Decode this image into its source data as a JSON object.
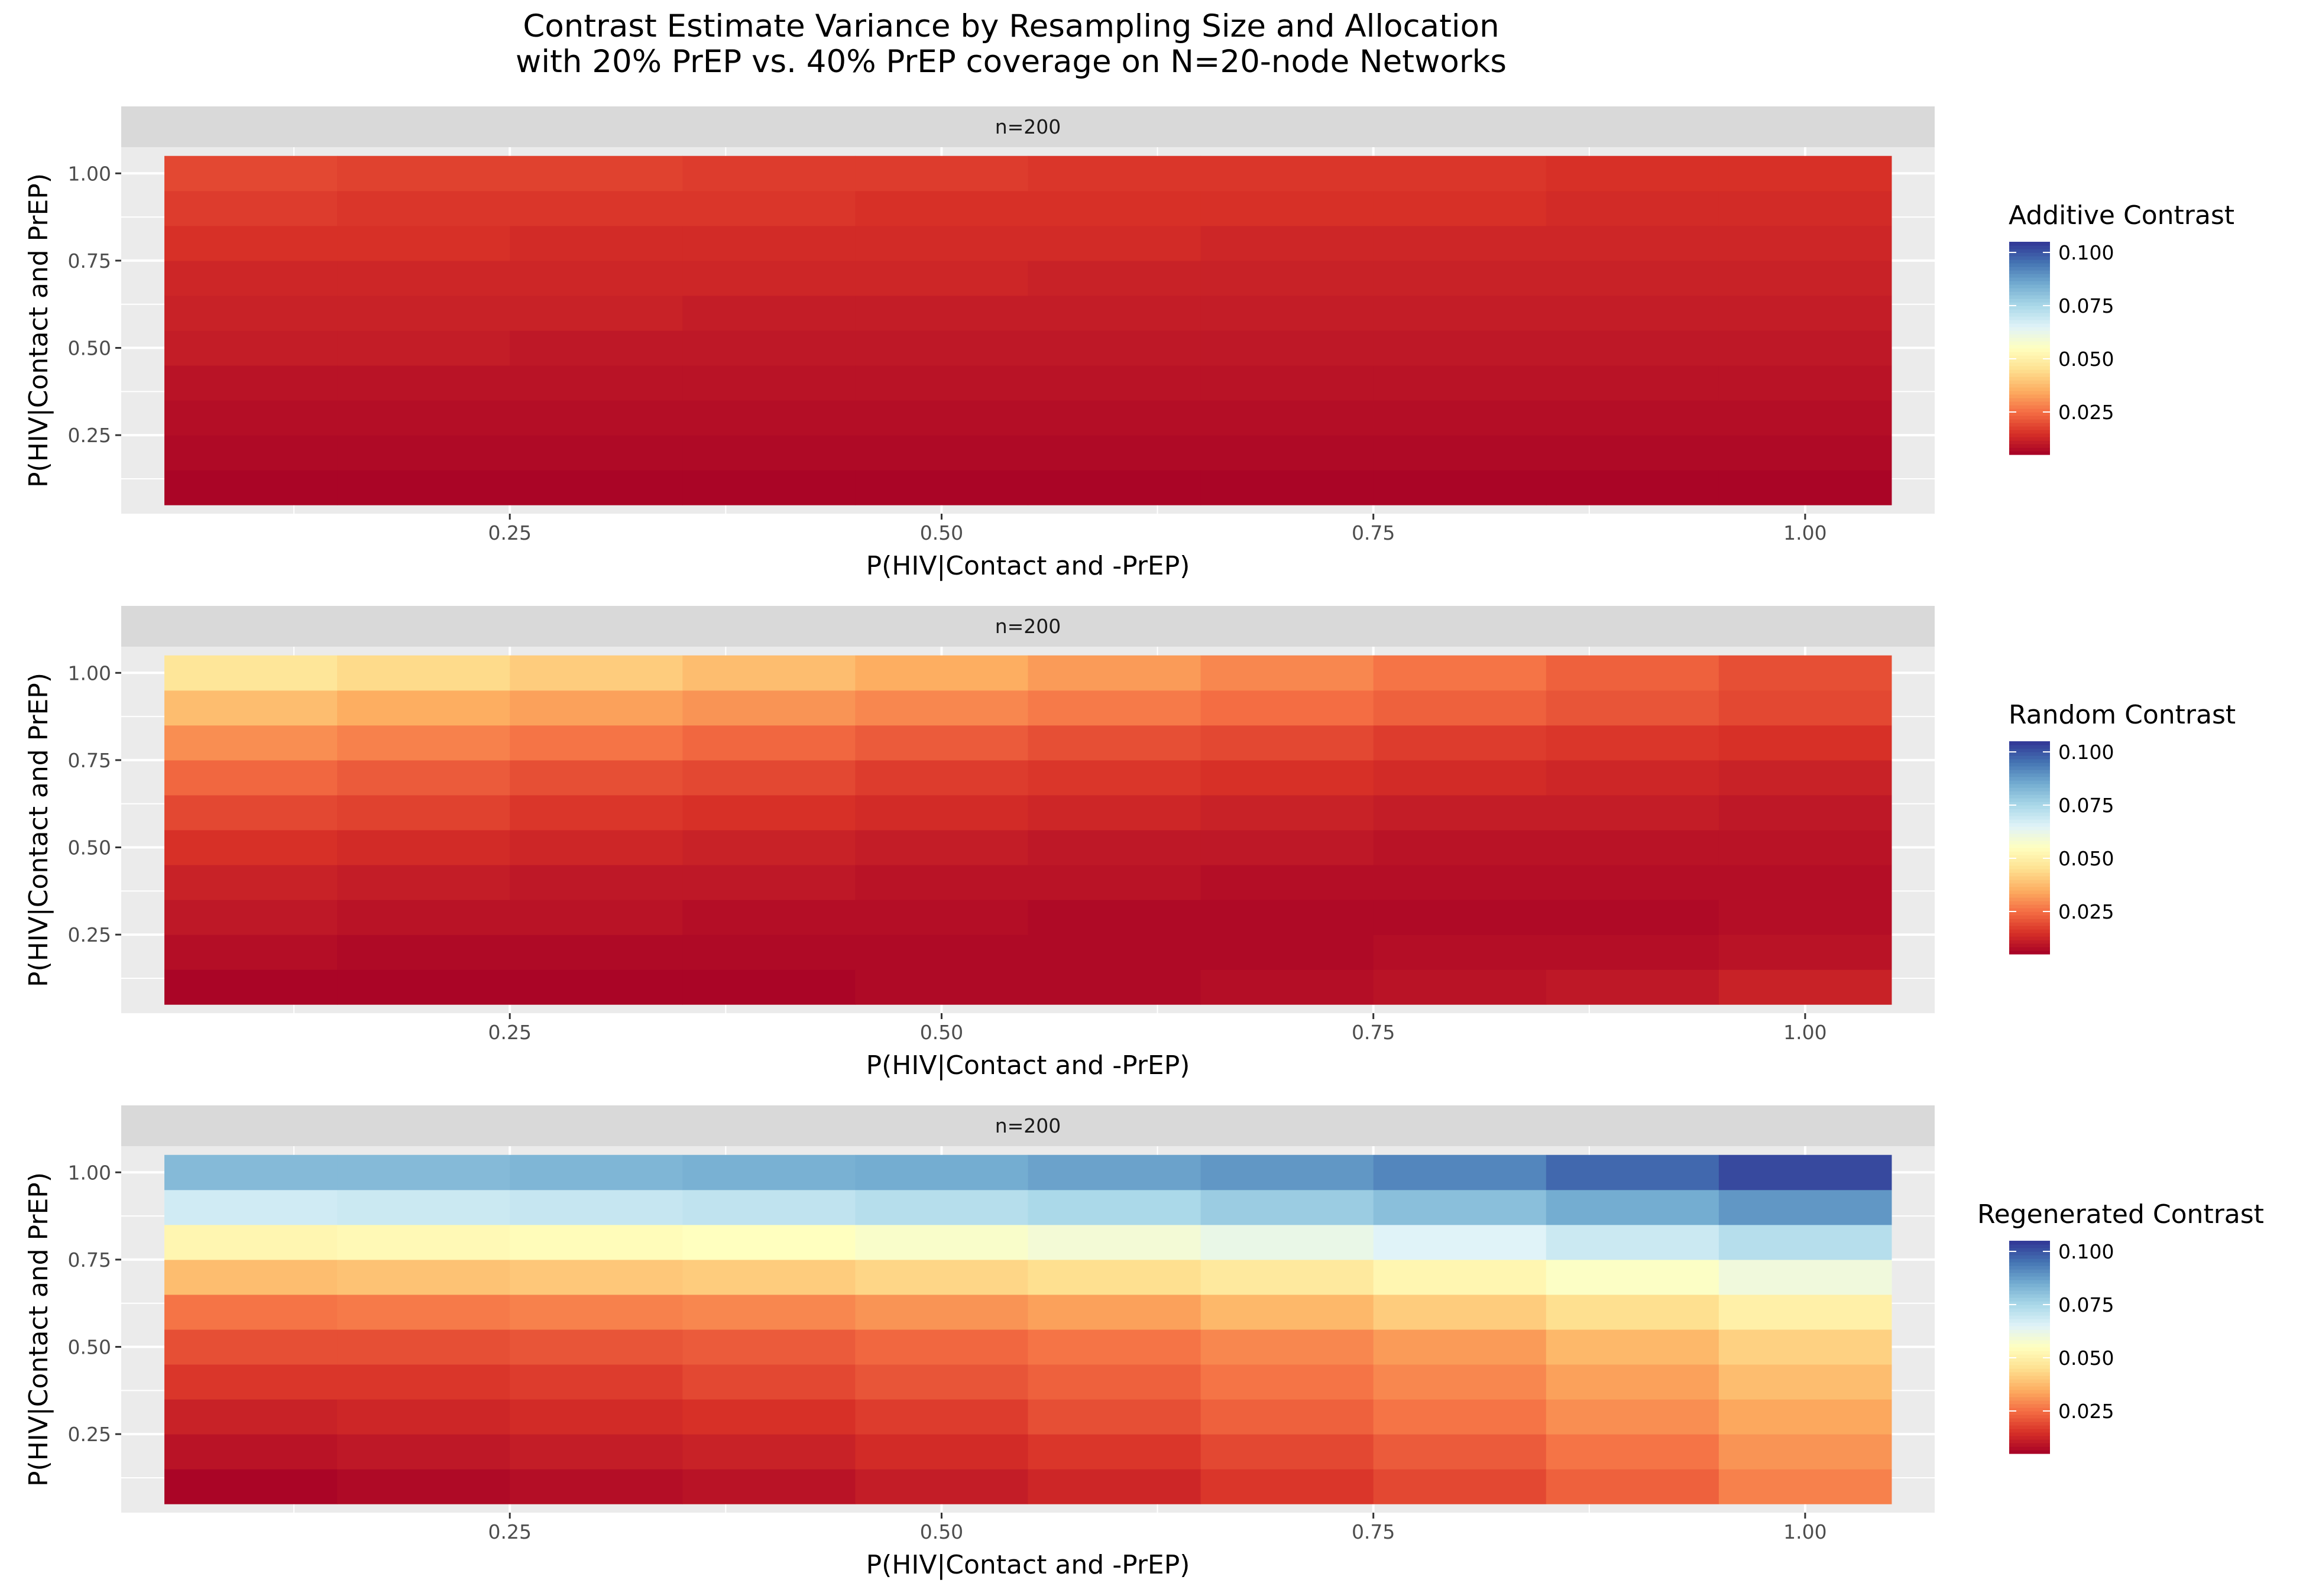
{
  "title": [
    "Contrast Estimate Variance by Resampling Size  and Allocation",
    "with 20% PrEP vs. 40% PrEP coverage on N=20-node Networks"
  ],
  "colors": {
    "panel_bg": "#ebebeb",
    "strip_bg": "#d9d9d9",
    "grid": "#ffffff",
    "scale": [
      "#a50026",
      "#d73027",
      "#f46d43",
      "#fdae61",
      "#fee090",
      "#ffffbf",
      "#e0f3f8",
      "#abd9e9",
      "#74add1",
      "#4575b4",
      "#313695"
    ]
  },
  "chart_data": [
    {
      "type": "heatmap",
      "facet_label": "n=200",
      "xlabel": "P(HIV|Contact and -PrEP)",
      "ylabel": "P(HIV|Contact and PrEP)",
      "x": [
        0.1,
        0.2,
        0.3,
        0.4,
        0.5,
        0.6,
        0.7,
        0.8,
        0.9,
        1.0
      ],
      "y": [
        0.1,
        0.2,
        0.3,
        0.4,
        0.5,
        0.6,
        0.7,
        0.8,
        0.9,
        1.0
      ],
      "xticks": [
        "0.25",
        "0.50",
        "0.75",
        "1.00"
      ],
      "yticks": [
        "0.25",
        "0.50",
        "0.75",
        "1.00"
      ],
      "legend_title": "Additive Contrast",
      "legend_ticks": [
        "0.025",
        "0.050",
        "0.075",
        "0.100"
      ],
      "limits": [
        0.005,
        0.105
      ],
      "values": [
        [
          0.006,
          0.006,
          0.006,
          0.006,
          0.006,
          0.006,
          0.006,
          0.006,
          0.006,
          0.006
        ],
        [
          0.007,
          0.007,
          0.007,
          0.007,
          0.007,
          0.007,
          0.007,
          0.007,
          0.007,
          0.007
        ],
        [
          0.008,
          0.008,
          0.008,
          0.008,
          0.008,
          0.008,
          0.008,
          0.008,
          0.008,
          0.008
        ],
        [
          0.009,
          0.009,
          0.009,
          0.009,
          0.009,
          0.009,
          0.009,
          0.009,
          0.009,
          0.009
        ],
        [
          0.011,
          0.011,
          0.01,
          0.01,
          0.01,
          0.01,
          0.01,
          0.01,
          0.01,
          0.01
        ],
        [
          0.012,
          0.012,
          0.012,
          0.011,
          0.011,
          0.011,
          0.011,
          0.011,
          0.011,
          0.011
        ],
        [
          0.013,
          0.013,
          0.013,
          0.013,
          0.013,
          0.012,
          0.012,
          0.012,
          0.012,
          0.012
        ],
        [
          0.015,
          0.015,
          0.014,
          0.014,
          0.014,
          0.014,
          0.013,
          0.013,
          0.013,
          0.013
        ],
        [
          0.017,
          0.016,
          0.016,
          0.016,
          0.015,
          0.015,
          0.015,
          0.015,
          0.014,
          0.014
        ],
        [
          0.019,
          0.018,
          0.018,
          0.017,
          0.017,
          0.016,
          0.016,
          0.016,
          0.015,
          0.015
        ]
      ]
    },
    {
      "type": "heatmap",
      "facet_label": "n=200",
      "xlabel": "P(HIV|Contact and -PrEP)",
      "ylabel": "P(HIV|Contact and PrEP)",
      "x": [
        0.1,
        0.2,
        0.3,
        0.4,
        0.5,
        0.6,
        0.7,
        0.8,
        0.9,
        1.0
      ],
      "y": [
        0.1,
        0.2,
        0.3,
        0.4,
        0.5,
        0.6,
        0.7,
        0.8,
        0.9,
        1.0
      ],
      "xticks": [
        "0.25",
        "0.50",
        "0.75",
        "1.00"
      ],
      "yticks": [
        "0.25",
        "0.50",
        "0.75",
        "1.00"
      ],
      "legend_title": "Random Contrast",
      "legend_ticks": [
        "0.025",
        "0.050",
        "0.075",
        "0.100"
      ],
      "limits": [
        0.005,
        0.105
      ],
      "values": [
        [
          0.006,
          0.006,
          0.006,
          0.006,
          0.007,
          0.007,
          0.008,
          0.009,
          0.01,
          0.012
        ],
        [
          0.008,
          0.007,
          0.007,
          0.007,
          0.007,
          0.007,
          0.007,
          0.008,
          0.008,
          0.009
        ],
        [
          0.01,
          0.009,
          0.009,
          0.008,
          0.008,
          0.007,
          0.007,
          0.007,
          0.007,
          0.008
        ],
        [
          0.012,
          0.011,
          0.01,
          0.01,
          0.009,
          0.009,
          0.008,
          0.008,
          0.008,
          0.008
        ],
        [
          0.015,
          0.014,
          0.013,
          0.012,
          0.011,
          0.01,
          0.01,
          0.009,
          0.009,
          0.009
        ],
        [
          0.019,
          0.018,
          0.016,
          0.015,
          0.014,
          0.013,
          0.012,
          0.011,
          0.011,
          0.01
        ],
        [
          0.024,
          0.022,
          0.02,
          0.019,
          0.017,
          0.016,
          0.015,
          0.014,
          0.013,
          0.012
        ],
        [
          0.03,
          0.028,
          0.026,
          0.024,
          0.022,
          0.02,
          0.019,
          0.017,
          0.016,
          0.015
        ],
        [
          0.038,
          0.035,
          0.033,
          0.031,
          0.029,
          0.027,
          0.025,
          0.023,
          0.021,
          0.019
        ],
        [
          0.047,
          0.044,
          0.041,
          0.038,
          0.035,
          0.032,
          0.029,
          0.026,
          0.023,
          0.02
        ]
      ]
    },
    {
      "type": "heatmap",
      "facet_label": "n=200",
      "xlabel": "P(HIV|Contact and -PrEP)",
      "ylabel": "P(HIV|Contact and PrEP)",
      "x": [
        0.1,
        0.2,
        0.3,
        0.4,
        0.5,
        0.6,
        0.7,
        0.8,
        0.9,
        1.0
      ],
      "y": [
        0.1,
        0.2,
        0.3,
        0.4,
        0.5,
        0.6,
        0.7,
        0.8,
        0.9,
        1.0
      ],
      "xticks": [
        "0.25",
        "0.50",
        "0.75",
        "1.00"
      ],
      "yticks": [
        "0.25",
        "0.50",
        "0.75",
        "1.00"
      ],
      "legend_title": "Regenerated Contrast",
      "legend_ticks": [
        "0.025",
        "0.050",
        "0.075",
        "0.100"
      ],
      "limits": [
        0.005,
        0.105
      ],
      "values": [
        [
          0.006,
          0.007,
          0.008,
          0.009,
          0.011,
          0.013,
          0.016,
          0.019,
          0.023,
          0.028
        ],
        [
          0.009,
          0.01,
          0.011,
          0.012,
          0.014,
          0.016,
          0.019,
          0.022,
          0.026,
          0.031
        ],
        [
          0.012,
          0.013,
          0.014,
          0.015,
          0.017,
          0.02,
          0.023,
          0.026,
          0.03,
          0.034
        ],
        [
          0.016,
          0.016,
          0.017,
          0.019,
          0.021,
          0.023,
          0.026,
          0.029,
          0.033,
          0.038
        ],
        [
          0.02,
          0.02,
          0.021,
          0.022,
          0.024,
          0.026,
          0.029,
          0.032,
          0.037,
          0.042
        ],
        [
          0.026,
          0.027,
          0.028,
          0.029,
          0.031,
          0.033,
          0.037,
          0.041,
          0.045,
          0.05
        ],
        [
          0.038,
          0.039,
          0.04,
          0.041,
          0.043,
          0.045,
          0.048,
          0.052,
          0.056,
          0.06
        ],
        [
          0.052,
          0.053,
          0.054,
          0.055,
          0.057,
          0.059,
          0.062,
          0.065,
          0.069,
          0.073
        ],
        [
          0.068,
          0.069,
          0.07,
          0.071,
          0.073,
          0.075,
          0.078,
          0.081,
          0.085,
          0.089
        ],
        [
          0.082,
          0.082,
          0.083,
          0.084,
          0.085,
          0.087,
          0.089,
          0.092,
          0.097,
          0.102
        ]
      ]
    }
  ]
}
